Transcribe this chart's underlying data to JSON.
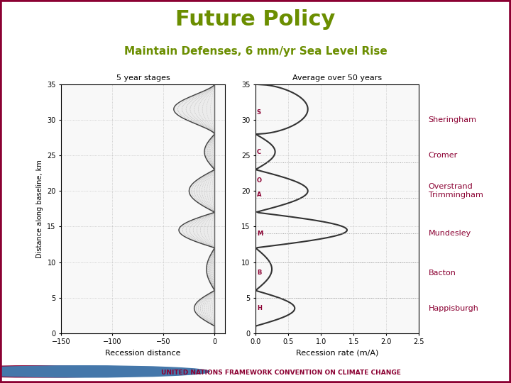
{
  "title": "Future Policy",
  "subtitle": "Maintain Defenses, 6 mm/yr Sea Level Rise",
  "title_color": "#6B8E00",
  "subtitle_color": "#6B8E00",
  "border_color": "#8B0032",
  "background_color": "#FFFFFF",
  "left_plot_title": "5 year stages",
  "right_plot_title": "Average over 50 years",
  "left_xlabel": "Recession distance",
  "right_xlabel": "Recession rate (m/A)",
  "ylabel": "Distance along baseline, km",
  "left_xlim": [
    -150,
    10
  ],
  "right_xlim": [
    0,
    2.5
  ],
  "ylim": [
    0,
    35
  ],
  "yticks": [
    0,
    5,
    10,
    15,
    20,
    25,
    30,
    35
  ],
  "left_xticks": [
    -150,
    -100,
    -50,
    0
  ],
  "right_xticks": [
    0,
    0.5,
    1,
    1.5,
    2,
    2.5
  ],
  "location_labels": [
    "Sheringham",
    "Cromer",
    "Overstrand\nTrimmingham",
    "Mundesley",
    "Bacton",
    "Happisburgh"
  ],
  "location_y": [
    30,
    25,
    20,
    14,
    8.5,
    3.5
  ],
  "location_color": "#8B0032",
  "footer_color": "#8B0032",
  "footer_text": "UNITED NATIONS FRAMEWORK CONVENTION ON CLIMATE CHANGE",
  "line_color": "#333333",
  "marker_color": "#8B0032"
}
